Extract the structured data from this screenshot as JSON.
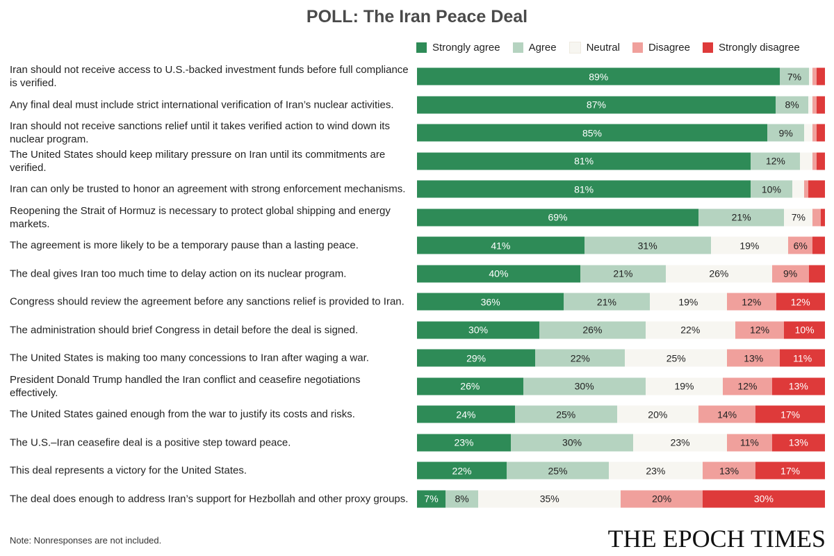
{
  "title": "POLL: The Iran Peace Deal",
  "note": "Note: Nonresponses are not included.",
  "logo_text": "THE EPOCH TIMES",
  "colors": {
    "strongly_agree": "#2e8b57",
    "agree": "#b5d3c0",
    "neutral": "#f7f6f1",
    "disagree": "#f0a09c",
    "strongly_disagree": "#de3a3a"
  },
  "legend": [
    "Strongly agree",
    "Agree",
    "Neutral",
    "Disagree",
    "Strongly disagree"
  ],
  "chart_data": {
    "type": "bar",
    "orientation": "horizontal-stacked",
    "title": "POLL: The Iran Peace Deal",
    "series_names": [
      "Strongly agree",
      "Agree",
      "Neutral",
      "Disagree",
      "Strongly disagree"
    ],
    "rows": [
      {
        "label": "Iran should not receive access to U.S.-backed investment funds before full compliance is verified.",
        "values": [
          89,
          7,
          1,
          1,
          2
        ],
        "labels": [
          "89%",
          "7%",
          "",
          "",
          ""
        ]
      },
      {
        "label": "Any final deal must include strict international verification of Iran’s nuclear activities.",
        "values": [
          87,
          8,
          1,
          1,
          2
        ],
        "labels": [
          "87%",
          "8%",
          "",
          "",
          ""
        ]
      },
      {
        "label": "Iran should not receive sanctions relief until it takes verified action to wind down its nuclear program.",
        "values": [
          85,
          9,
          2,
          1,
          2
        ],
        "labels": [
          "85%",
          "9%",
          "",
          "",
          ""
        ]
      },
      {
        "label": "The United States should keep military pressure on Iran until its commitments are verified.",
        "values": [
          81,
          12,
          3,
          1,
          2
        ],
        "labels": [
          "81%",
          "12%",
          "",
          "",
          ""
        ]
      },
      {
        "label": "Iran can only be trusted to honor an agreement with strong enforcement mechanisms.",
        "values": [
          81,
          10,
          3,
          1,
          4
        ],
        "labels": [
          "81%",
          "10%",
          "",
          "",
          ""
        ]
      },
      {
        "label": "Reopening the Strait of Hormuz is necessary to protect global shipping and energy markets.",
        "values": [
          69,
          21,
          7,
          2,
          1
        ],
        "labels": [
          "69%",
          "21%",
          "7%",
          "",
          ""
        ]
      },
      {
        "label": "The agreement is more likely to be a temporary pause than a lasting peace.",
        "values": [
          41,
          31,
          19,
          6,
          3
        ],
        "labels": [
          "41%",
          "31%",
          "19%",
          "6%",
          ""
        ]
      },
      {
        "label": "The deal gives Iran too much time to delay action on its nuclear program.",
        "values": [
          40,
          21,
          26,
          9,
          4
        ],
        "labels": [
          "40%",
          "21%",
          "26%",
          "9%",
          ""
        ]
      },
      {
        "label": "Congress should review the agreement before any sanctions relief is provided to Iran.",
        "values": [
          36,
          21,
          19,
          12,
          12
        ],
        "labels": [
          "36%",
          "21%",
          "19%",
          "12%",
          "12%"
        ]
      },
      {
        "label": "The administration should brief Congress in detail before the deal is signed.",
        "values": [
          30,
          26,
          22,
          12,
          10
        ],
        "labels": [
          "30%",
          "26%",
          "22%",
          "12%",
          "10%"
        ]
      },
      {
        "label": "The United States is making too many concessions to Iran after waging a war.",
        "values": [
          29,
          22,
          25,
          13,
          11
        ],
        "labels": [
          "29%",
          "22%",
          "25%",
          "13%",
          "11%"
        ]
      },
      {
        "label": "President Donald Trump handled the Iran conflict and ceasefire negotiations effectively.",
        "values": [
          26,
          30,
          19,
          12,
          13
        ],
        "labels": [
          "26%",
          "30%",
          "19%",
          "12%",
          "13%"
        ]
      },
      {
        "label": "The United States gained enough from the war to justify its costs and risks.",
        "values": [
          24,
          25,
          20,
          14,
          17
        ],
        "labels": [
          "24%",
          "25%",
          "20%",
          "14%",
          "17%"
        ]
      },
      {
        "label": "The U.S.–Iran ceasefire deal is a positive step toward peace.",
        "values": [
          23,
          30,
          23,
          11,
          13
        ],
        "labels": [
          "23%",
          "30%",
          "23%",
          "11%",
          "13%"
        ]
      },
      {
        "label": "This deal represents a victory for the United States.",
        "values": [
          22,
          25,
          23,
          13,
          17
        ],
        "labels": [
          "22%",
          "25%",
          "23%",
          "13%",
          "17%"
        ]
      },
      {
        "label": "The deal does enough to address Iran’s support for Hezbollah and other proxy groups.",
        "values": [
          7,
          8,
          35,
          20,
          30
        ],
        "labels": [
          "7%",
          "8%",
          "35%",
          "20%",
          "30%"
        ]
      }
    ]
  }
}
